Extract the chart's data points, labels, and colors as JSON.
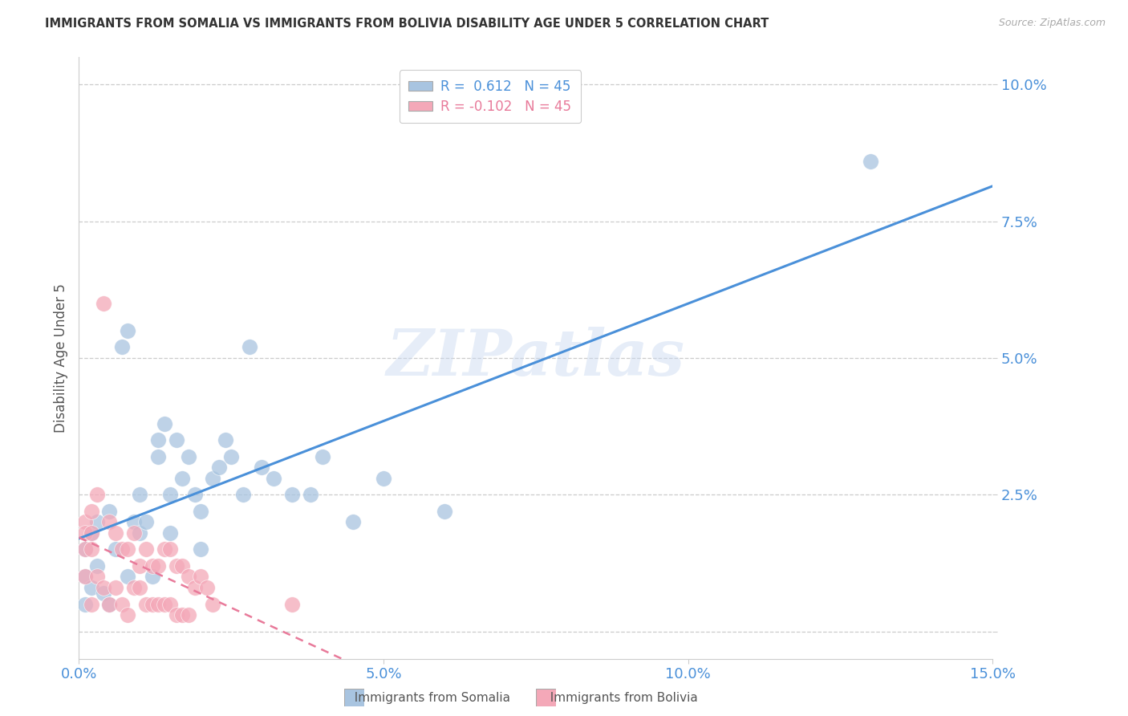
{
  "title": "IMMIGRANTS FROM SOMALIA VS IMMIGRANTS FROM BOLIVIA DISABILITY AGE UNDER 5 CORRELATION CHART",
  "source": "Source: ZipAtlas.com",
  "ylabel": "Disability Age Under 5",
  "xlim": [
    0.0,
    0.15
  ],
  "ylim": [
    -0.005,
    0.105
  ],
  "xticks": [
    0.0,
    0.05,
    0.1,
    0.15
  ],
  "yticks": [
    0.0,
    0.025,
    0.05,
    0.075,
    0.1
  ],
  "xticklabels": [
    "0.0%",
    "5.0%",
    "10.0%",
    "15.0%"
  ],
  "yticklabels": [
    "",
    "2.5%",
    "5.0%",
    "7.5%",
    "10.0%"
  ],
  "legend_labels": [
    "Immigrants from Somalia",
    "Immigrants from Bolivia"
  ],
  "somalia_color": "#a8c4e0",
  "bolivia_color": "#f4a8b8",
  "somalia_line_color": "#4a90d9",
  "bolivia_line_color": "#e87a9a",
  "somalia_R": 0.612,
  "somalia_N": 45,
  "bolivia_R": -0.102,
  "bolivia_N": 45,
  "watermark": "ZIPatlas",
  "somalia_x": [
    0.001,
    0.001,
    0.001,
    0.002,
    0.002,
    0.003,
    0.003,
    0.004,
    0.005,
    0.005,
    0.006,
    0.007,
    0.008,
    0.008,
    0.009,
    0.01,
    0.01,
    0.011,
    0.012,
    0.013,
    0.013,
    0.014,
    0.015,
    0.015,
    0.016,
    0.017,
    0.018,
    0.019,
    0.02,
    0.02,
    0.022,
    0.023,
    0.024,
    0.025,
    0.027,
    0.028,
    0.03,
    0.032,
    0.035,
    0.038,
    0.04,
    0.045,
    0.05,
    0.06,
    0.13
  ],
  "somalia_y": [
    0.005,
    0.01,
    0.015,
    0.008,
    0.018,
    0.012,
    0.02,
    0.007,
    0.005,
    0.022,
    0.015,
    0.052,
    0.055,
    0.01,
    0.02,
    0.018,
    0.025,
    0.02,
    0.01,
    0.035,
    0.032,
    0.038,
    0.025,
    0.018,
    0.035,
    0.028,
    0.032,
    0.025,
    0.022,
    0.015,
    0.028,
    0.03,
    0.035,
    0.032,
    0.025,
    0.052,
    0.03,
    0.028,
    0.025,
    0.025,
    0.032,
    0.02,
    0.028,
    0.022,
    0.086
  ],
  "bolivia_x": [
    0.001,
    0.001,
    0.001,
    0.001,
    0.002,
    0.002,
    0.002,
    0.002,
    0.003,
    0.003,
    0.004,
    0.004,
    0.005,
    0.005,
    0.006,
    0.006,
    0.007,
    0.007,
    0.008,
    0.008,
    0.009,
    0.009,
    0.01,
    0.01,
    0.011,
    0.011,
    0.012,
    0.012,
    0.013,
    0.013,
    0.014,
    0.014,
    0.015,
    0.015,
    0.016,
    0.016,
    0.017,
    0.017,
    0.018,
    0.018,
    0.019,
    0.02,
    0.021,
    0.022,
    0.035
  ],
  "bolivia_y": [
    0.02,
    0.018,
    0.015,
    0.01,
    0.022,
    0.018,
    0.015,
    0.005,
    0.025,
    0.01,
    0.06,
    0.008,
    0.02,
    0.005,
    0.018,
    0.008,
    0.015,
    0.005,
    0.015,
    0.003,
    0.018,
    0.008,
    0.012,
    0.008,
    0.015,
    0.005,
    0.012,
    0.005,
    0.012,
    0.005,
    0.015,
    0.005,
    0.015,
    0.005,
    0.012,
    0.003,
    0.012,
    0.003,
    0.01,
    0.003,
    0.008,
    0.01,
    0.008,
    0.005,
    0.005
  ]
}
